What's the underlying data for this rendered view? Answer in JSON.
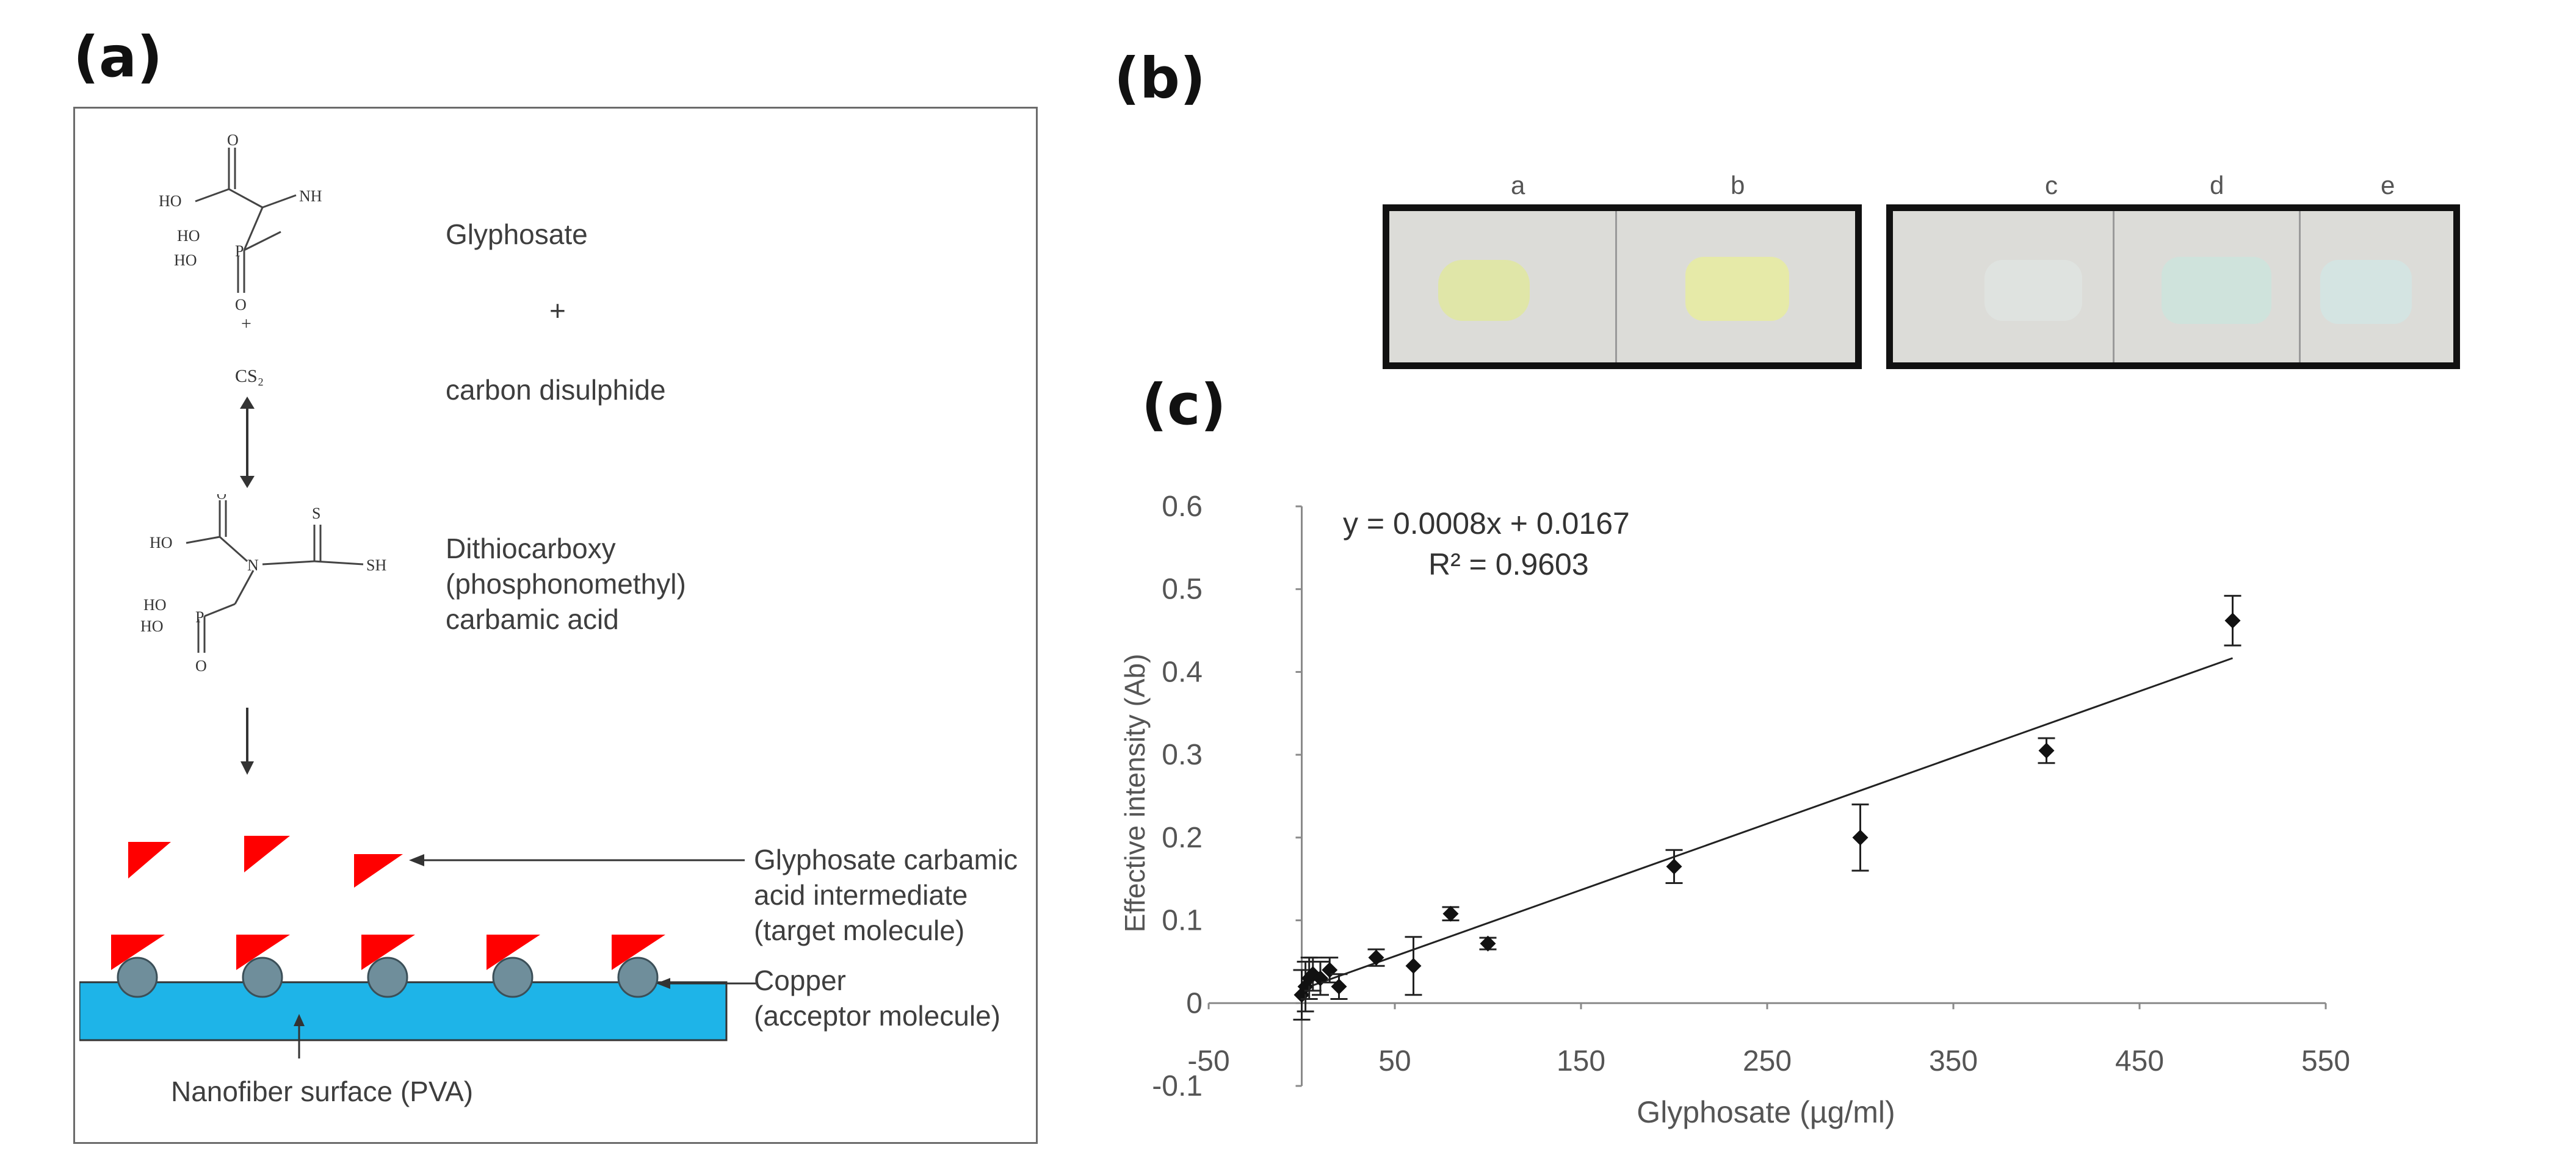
{
  "panels": {
    "a": "(a)",
    "b": "(b)",
    "c": "(c)"
  },
  "scheme": {
    "reactant1": "Glyphosate",
    "plus": "+",
    "reactant2": "carbon disulphide",
    "product": [
      "Dithiocarboxy",
      "(phosphonomethyl)",
      "carbamic acid"
    ],
    "target": [
      "Glyphosate carbamic",
      "acid intermediate",
      "(target molecule)"
    ],
    "acceptor": [
      "Copper",
      "(acceptor molecule)"
    ],
    "surface": "Nanofiber surface (PVA)",
    "chem_text": {
      "ho1": "HO",
      "nh": "NH",
      "ho2": "HO",
      "ho3": "HO",
      "p1": "P",
      "o1": "O",
      "o2": "O",
      "plus_small": "+",
      "cs2": "CS₂",
      "ho4": "HO",
      "n": "N",
      "s": "S",
      "sh": "SH",
      "ho5": "HO",
      "ho6": "HO",
      "p2": "P",
      "o3": "O",
      "o4": "O"
    },
    "colors": {
      "triangle": "#ff0000",
      "copper": "#6f8e9b",
      "surface": "#1eb4e8"
    }
  },
  "photo": {
    "labels": [
      "a",
      "b",
      "c",
      "d",
      "e"
    ],
    "pad_colors": [
      "#e0e6a8",
      "#e6eaa8",
      "#dfe3e0",
      "#cfe3dc",
      "#d4e4e2"
    ]
  },
  "chart_data": {
    "type": "scatter",
    "xlabel": "Glyphosate (µg/ml)",
    "ylabel": "Effective intensity (Ab)",
    "xlim": [
      -50,
      550
    ],
    "ylim": [
      -0.1,
      0.6
    ],
    "x_ticks": [
      -50,
      50,
      150,
      250,
      350,
      450,
      550
    ],
    "y_ticks": [
      -0.1,
      0,
      0.1,
      0.2,
      0.3,
      0.4,
      0.5,
      0.6
    ],
    "x_tick_labels": [
      "-50",
      "50",
      "150",
      "250",
      "350",
      "450",
      "550"
    ],
    "y_tick_labels": [
      "-0.1",
      "0",
      "0.1",
      "0.2",
      "0.3",
      "0.4",
      "0.5",
      "0.6"
    ],
    "points": [
      {
        "x": 0,
        "y": 0.01,
        "err": 0.03
      },
      {
        "x": 2,
        "y": 0.02,
        "err": 0.03
      },
      {
        "x": 4,
        "y": 0.03,
        "err": 0.025
      },
      {
        "x": 6,
        "y": 0.035,
        "err": 0.02
      },
      {
        "x": 10,
        "y": 0.03,
        "err": 0.02
      },
      {
        "x": 15,
        "y": 0.04,
        "err": 0.015
      },
      {
        "x": 20,
        "y": 0.02,
        "err": 0.015
      },
      {
        "x": 40,
        "y": 0.055,
        "err": 0.01
      },
      {
        "x": 60,
        "y": 0.045,
        "err": 0.035
      },
      {
        "x": 80,
        "y": 0.108,
        "err": 0.008
      },
      {
        "x": 100,
        "y": 0.072,
        "err": 0.007
      },
      {
        "x": 200,
        "y": 0.165,
        "err": 0.02
      },
      {
        "x": 300,
        "y": 0.2,
        "err": 0.04
      },
      {
        "x": 400,
        "y": 0.305,
        "err": 0.015
      },
      {
        "x": 500,
        "y": 0.462,
        "err": 0.03
      }
    ],
    "trendline": {
      "slope": 0.0008,
      "intercept": 0.0167,
      "x_range": [
        0,
        500
      ]
    },
    "equation": "y = 0.0008x + 0.0167",
    "r_squared": "R² = 0.9603",
    "grid": false,
    "legend": "none"
  }
}
